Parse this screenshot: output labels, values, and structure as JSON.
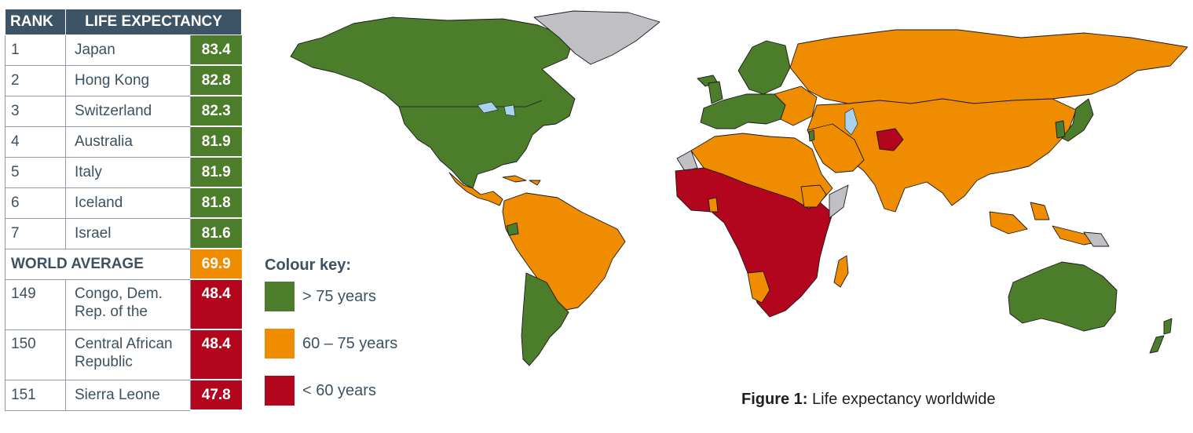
{
  "table": {
    "header": {
      "rank": "RANK",
      "life_expectancy": "LIFE EXPECTANCY"
    },
    "rows": [
      {
        "rank": "1",
        "country": "Japan",
        "value": "83.4",
        "band": "green"
      },
      {
        "rank": "2",
        "country": "Hong Kong",
        "value": "82.8",
        "band": "green"
      },
      {
        "rank": "3",
        "country": "Switzerland",
        "value": "82.3",
        "band": "green"
      },
      {
        "rank": "4",
        "country": "Australia",
        "value": "81.9",
        "band": "green"
      },
      {
        "rank": "5",
        "country": "Italy",
        "value": "81.9",
        "band": "green"
      },
      {
        "rank": "6",
        "country": "Iceland",
        "value": "81.8",
        "band": "green"
      },
      {
        "rank": "7",
        "country": "Israel",
        "value": "81.6",
        "band": "green"
      }
    ],
    "world_average": {
      "label": "WORLD AVERAGE",
      "value": "69.9",
      "band": "orange"
    },
    "bottom_rows": [
      {
        "rank": "149",
        "country_line1": "Congo, Dem.",
        "country_line2": "Rep. of the",
        "value": "48.4",
        "band": "red"
      },
      {
        "rank": "150",
        "country_line1": "Central African",
        "country_line2": "Republic",
        "value": "48.4",
        "band": "red"
      },
      {
        "rank": "151",
        "country": "Sierra Leone",
        "value": "47.8",
        "band": "red"
      }
    ]
  },
  "colour_key": {
    "title": "Colour key:",
    "items": [
      {
        "label": "> 75 years",
        "color": "#4b7d2b"
      },
      {
        "label": "60 – 75 years",
        "color": "#f08c00"
      },
      {
        "label": "< 60 years",
        "color": "#b3051e"
      }
    ]
  },
  "map_colors": {
    "green": "#4b7d2b",
    "orange": "#f08c00",
    "red": "#b3051e",
    "no_data": "#c0c0c4",
    "water": "#a9d2ee"
  },
  "caption": {
    "label": "Figure 1:",
    "text": "Life expectancy worldwide"
  }
}
